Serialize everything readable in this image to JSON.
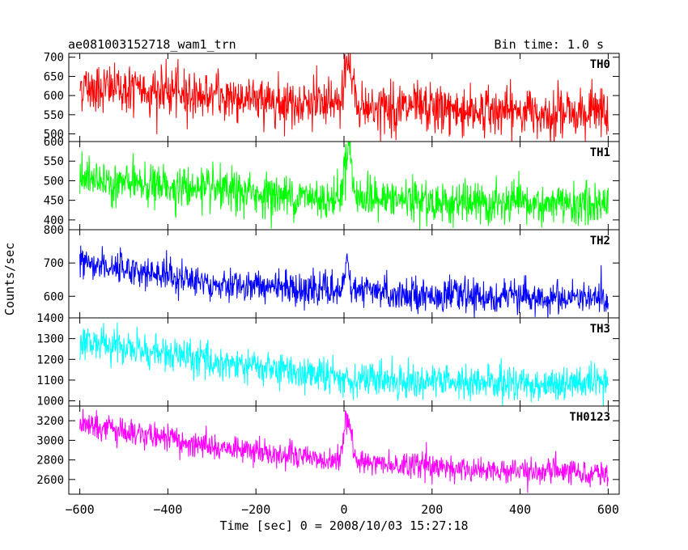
{
  "header": {
    "title": "ae081003152718_wam1_trn",
    "bin_time": "Bin time: 1.0 s"
  },
  "chart_data": {
    "type": "line",
    "xlabel": "Time [sec] 0 = 2008/10/03 15:27:18",
    "ylabel": "Counts/sec",
    "xlim": [
      -625,
      625
    ],
    "x_ticks": [
      -600,
      -400,
      -200,
      0,
      200,
      400,
      600
    ],
    "x_range": [
      -600,
      600
    ],
    "bin_time_s": 1.0,
    "panels": [
      {
        "name": "TH0",
        "color": "#ff0000",
        "ylim": [
          480,
          710
        ],
        "y_ticks": [
          500,
          550,
          600,
          650,
          700
        ],
        "trend": [
          [
            -600,
            625
          ],
          [
            -300,
            600
          ],
          [
            0,
            572
          ],
          [
            300,
            560
          ],
          [
            600,
            555
          ]
        ],
        "noise_sd": 32,
        "peaks": [
          {
            "x": 5,
            "y": 705
          },
          {
            "x": 18,
            "y": 665
          }
        ]
      },
      {
        "name": "TH1",
        "color": "#00ff00",
        "ylim": [
          375,
          600
        ],
        "y_ticks": [
          400,
          450,
          500,
          550,
          600
        ],
        "trend": [
          [
            -600,
            505
          ],
          [
            -300,
            475
          ],
          [
            -50,
            455
          ],
          [
            0,
            458
          ],
          [
            300,
            440
          ],
          [
            600,
            438
          ]
        ],
        "noise_sd": 26,
        "peaks": [
          {
            "x": 5,
            "y": 585
          },
          {
            "x": 15,
            "y": 555
          }
        ]
      },
      {
        "name": "TH2",
        "color": "#0000ff",
        "ylim": [
          535,
          800
        ],
        "y_ticks": [
          600,
          700,
          800
        ],
        "trend": [
          [
            -600,
            705
          ],
          [
            -300,
            640
          ],
          [
            0,
            615
          ],
          [
            300,
            600
          ],
          [
            600,
            590
          ]
        ],
        "noise_sd": 24,
        "peaks": [
          {
            "x": 8,
            "y": 730
          }
        ]
      },
      {
        "name": "TH3",
        "color": "#00ffff",
        "ylim": [
          975,
          1400
        ],
        "y_ticks": [
          1000,
          1100,
          1200,
          1300,
          1400
        ],
        "trend": [
          [
            -600,
            1290
          ],
          [
            -300,
            1190
          ],
          [
            0,
            1110
          ],
          [
            300,
            1085
          ],
          [
            600,
            1080
          ]
        ],
        "noise_sd": 42,
        "peaks": []
      },
      {
        "name": "TH0123",
        "color": "#ff00ff",
        "ylim": [
          2450,
          3350
        ],
        "y_ticks": [
          2600,
          2800,
          3000,
          3200
        ],
        "trend": [
          [
            -600,
            3175
          ],
          [
            -300,
            2935
          ],
          [
            0,
            2790
          ],
          [
            300,
            2700
          ],
          [
            600,
            2660
          ]
        ],
        "noise_sd": 65,
        "peaks": [
          {
            "x": 5,
            "y": 3240
          },
          {
            "x": 16,
            "y": 3090
          }
        ]
      }
    ]
  }
}
